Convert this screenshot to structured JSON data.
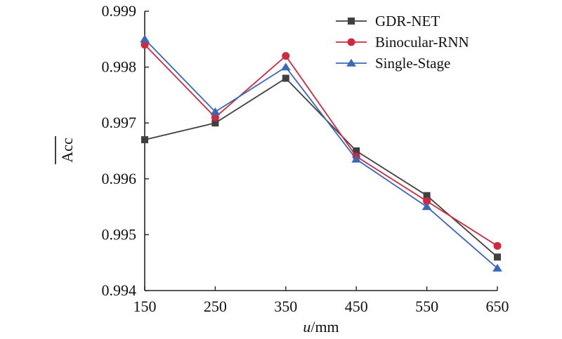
{
  "chart_data": {
    "type": "line",
    "xlabel": {
      "italic": "u",
      "rest": "/mm"
    },
    "ylabel": "Acc",
    "ylabel_overline": true,
    "x": [
      150,
      250,
      350,
      450,
      550,
      650
    ],
    "xlim": [
      150,
      650
    ],
    "ylim": [
      0.994,
      0.999
    ],
    "x_ticks": [
      "150",
      "250",
      "350",
      "450",
      "550",
      "650"
    ],
    "y_ticks": [
      "0.994",
      "0.995",
      "0.996",
      "0.997",
      "0.998",
      "0.999"
    ],
    "grid": false,
    "legend_position": "top-right",
    "series": [
      {
        "name": "GDR-NET",
        "marker": "square",
        "color": "#404040",
        "values": [
          0.9967,
          0.997,
          0.9978,
          0.9965,
          0.9957,
          0.9946
        ]
      },
      {
        "name": "Binocular-RNN",
        "marker": "circle",
        "color": "#d0283c",
        "values": [
          0.9984,
          0.9971,
          0.9982,
          0.9964,
          0.9956,
          0.9948
        ]
      },
      {
        "name": "Single-Stage",
        "marker": "triangle",
        "color": "#3a68b8",
        "values": [
          0.9985,
          0.9972,
          0.998,
          0.99635,
          0.9955,
          0.9944
        ]
      }
    ]
  }
}
